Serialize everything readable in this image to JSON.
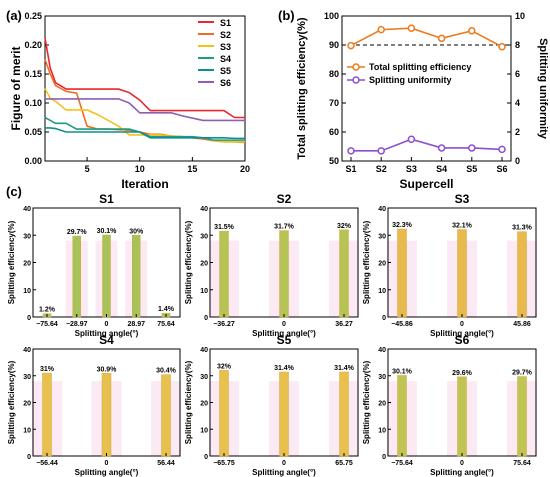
{
  "panel_labels": [
    "(a)",
    "(b)",
    "(c)"
  ],
  "chart_data": [
    {
      "id": "a",
      "type": "line",
      "xlabel": "Iteration",
      "ylabel": "Figure of merit",
      "xlim": [
        1,
        20
      ],
      "ylim": [
        0,
        0.25
      ],
      "xticks": [
        5,
        10,
        15,
        20
      ],
      "yticks": [
        0.0,
        0.05,
        0.1,
        0.15,
        0.2,
        0.25
      ],
      "legend_position": "top-right",
      "series": [
        {
          "name": "S1",
          "color": "#e8262d",
          "x": [
            1,
            1.5,
            2,
            3,
            4,
            5,
            6,
            7,
            8,
            9,
            10,
            11,
            12,
            13,
            14,
            15,
            16,
            17,
            18,
            19,
            20
          ],
          "y": [
            0.212,
            0.16,
            0.135,
            0.124,
            0.124,
            0.124,
            0.124,
            0.124,
            0.124,
            0.118,
            0.105,
            0.087,
            0.087,
            0.087,
            0.087,
            0.087,
            0.087,
            0.087,
            0.087,
            0.075,
            0.075
          ]
        },
        {
          "name": "S2",
          "color": "#f26b21",
          "x": [
            1,
            1.5,
            2,
            3,
            4,
            5,
            6,
            7,
            8,
            9,
            10,
            11,
            12,
            13,
            14,
            15,
            16,
            17,
            18,
            19,
            20
          ],
          "y": [
            0.175,
            0.15,
            0.13,
            0.12,
            0.117,
            0.06,
            0.055,
            0.055,
            0.054,
            0.053,
            0.05,
            0.046,
            0.046,
            0.043,
            0.042,
            0.04,
            0.038,
            0.035,
            0.033,
            0.033,
            0.032
          ]
        },
        {
          "name": "S3",
          "color": "#f5c21b",
          "x": [
            1,
            1.5,
            2,
            3,
            4,
            5,
            6,
            7,
            8,
            9,
            10,
            11,
            12,
            13,
            14,
            15,
            16,
            17,
            18,
            19,
            20
          ],
          "y": [
            0.125,
            0.108,
            0.103,
            0.088,
            0.088,
            0.088,
            0.08,
            0.07,
            0.06,
            0.045,
            0.045,
            0.045,
            0.045,
            0.043,
            0.042,
            0.041,
            0.04,
            0.035,
            0.033,
            0.033,
            0.033
          ]
        },
        {
          "name": "S4",
          "color": "#1f9b83",
          "x": [
            1,
            1.5,
            2,
            3,
            4,
            5,
            6,
            7,
            8,
            9,
            10,
            11,
            12,
            13,
            14,
            15,
            16,
            17,
            18,
            19,
            20
          ],
          "y": [
            0.075,
            0.07,
            0.065,
            0.065,
            0.055,
            0.055,
            0.055,
            0.055,
            0.055,
            0.055,
            0.05,
            0.042,
            0.042,
            0.042,
            0.042,
            0.042,
            0.04,
            0.036,
            0.036,
            0.036,
            0.036
          ]
        },
        {
          "name": "S5",
          "color": "#0e8f8f",
          "x": [
            1,
            1.5,
            2,
            3,
            4,
            5,
            6,
            7,
            8,
            9,
            10,
            11,
            12,
            13,
            14,
            15,
            16,
            17,
            18,
            19,
            20
          ],
          "y": [
            0.057,
            0.057,
            0.056,
            0.05,
            0.05,
            0.05,
            0.05,
            0.05,
            0.05,
            0.05,
            0.05,
            0.04,
            0.04,
            0.04,
            0.04,
            0.04,
            0.04,
            0.04,
            0.04,
            0.039,
            0.039
          ]
        },
        {
          "name": "S6",
          "color": "#8e5fb0",
          "x": [
            1,
            1.5,
            2,
            3,
            4,
            5,
            6,
            7,
            8,
            9,
            10,
            11,
            12,
            13,
            14,
            15,
            16,
            17,
            18,
            19,
            20
          ],
          "y": [
            0.107,
            0.107,
            0.107,
            0.107,
            0.107,
            0.107,
            0.107,
            0.107,
            0.107,
            0.1,
            0.083,
            0.083,
            0.083,
            0.083,
            0.078,
            0.074,
            0.07,
            0.07,
            0.07,
            0.07,
            0.07
          ]
        }
      ]
    },
    {
      "id": "b",
      "type": "line",
      "xlabel": "Supercell",
      "ylabel": "Total splitting efficiency(%)",
      "y2label": "Splitting uniformity",
      "categories": [
        "S1",
        "S2",
        "S3",
        "S4",
        "S5",
        "S6"
      ],
      "ylim": [
        50,
        100
      ],
      "yticks": [
        50,
        60,
        70,
        80,
        90,
        100
      ],
      "y2lim": [
        0,
        10
      ],
      "y2ticks": [
        0,
        2,
        4,
        6,
        8,
        10
      ],
      "reference_line": 90,
      "legend_position": "middle-left",
      "series": [
        {
          "name": "Total splitting efficiency",
          "axis": "left",
          "color": "#f07a1a",
          "values": [
            89.8,
            95.3,
            95.8,
            92.3,
            94.9,
            89.4
          ]
        },
        {
          "name": "Splitting uniformity",
          "axis": "right",
          "color": "#8a4fd0",
          "values": [
            0.7,
            0.7,
            1.5,
            0.9,
            0.9,
            0.8
          ]
        }
      ]
    },
    {
      "id": "c-S1",
      "type": "bar",
      "title": "S1",
      "xlabel": "Splitting angle(°)",
      "ylabel": "Splitting efficiency(%)",
      "ylim": [
        0,
        40
      ],
      "yticks": [
        0,
        10,
        20,
        30,
        40
      ],
      "categories": [
        "−75.64",
        "−28.97",
        "0",
        "28.97",
        "75.64"
      ],
      "values": [
        1.2,
        29.7,
        30.1,
        30.0,
        1.4
      ],
      "labels": [
        "1.2%",
        "29.7%",
        "30.1%",
        "30%",
        "1.4%"
      ],
      "bar_color": "#a8c25a"
    },
    {
      "id": "c-S2",
      "type": "bar",
      "title": "S2",
      "xlabel": "Splitting angle(°)",
      "ylabel": "Splitting efficiency(%)",
      "ylim": [
        0,
        40
      ],
      "yticks": [
        0,
        10,
        20,
        30,
        40
      ],
      "categories": [
        "−36.27",
        "0",
        "36.27"
      ],
      "values": [
        31.5,
        31.7,
        32.0
      ],
      "labels": [
        "31.5%",
        "31.7%",
        "32%"
      ],
      "bar_color": "#b6c455"
    },
    {
      "id": "c-S3",
      "type": "bar",
      "title": "S3",
      "xlabel": "Splitting angle(°)",
      "ylabel": "Splitting efficiency(%)",
      "ylim": [
        0,
        40
      ],
      "yticks": [
        0,
        10,
        20,
        30,
        40
      ],
      "categories": [
        "−45.86",
        "0",
        "45.86"
      ],
      "values": [
        32.3,
        32.1,
        31.3
      ],
      "labels": [
        "32.3%",
        "32.1%",
        "31.3%"
      ],
      "bar_color": "#e8b94c"
    },
    {
      "id": "c-S4",
      "type": "bar",
      "title": "S4",
      "xlabel": "Splitting angle(°)",
      "ylabel": "Splitting efficiency(%)",
      "ylim": [
        0,
        40
      ],
      "yticks": [
        0,
        10,
        20,
        30,
        40
      ],
      "categories": [
        "−56.44",
        "0",
        "56.44"
      ],
      "values": [
        31.0,
        30.9,
        30.4
      ],
      "labels": [
        "31%",
        "30.9%",
        "30.4%"
      ],
      "bar_color": "#e8c04e"
    },
    {
      "id": "c-S5",
      "type": "bar",
      "title": "S5",
      "xlabel": "Splitting angle(°)",
      "ylabel": "Splitting efficiency(%)",
      "ylim": [
        0,
        40
      ],
      "yticks": [
        0,
        10,
        20,
        30,
        40
      ],
      "categories": [
        "−65.75",
        "0",
        "65.75"
      ],
      "values": [
        32.0,
        31.4,
        31.4
      ],
      "labels": [
        "32%",
        "31.4%",
        "31.4%"
      ],
      "bar_color": "#e8c04e"
    },
    {
      "id": "c-S6",
      "type": "bar",
      "title": "S6",
      "xlabel": "Splitting angle(°)",
      "ylabel": "Splitting efficiency(%)",
      "ylim": [
        0,
        40
      ],
      "yticks": [
        0,
        10,
        20,
        30,
        40
      ],
      "categories": [
        "−75.64",
        "0",
        "75.64"
      ],
      "values": [
        30.1,
        29.6,
        29.7
      ],
      "labels": [
        "30.1%",
        "29.6%",
        "29.7%"
      ],
      "bar_color": "#bfc453"
    }
  ]
}
